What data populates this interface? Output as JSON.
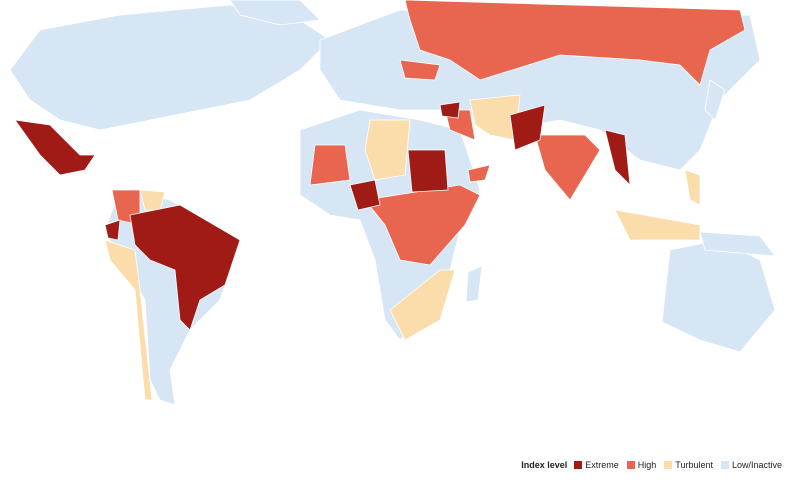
{
  "legend": {
    "title": "Index level",
    "items": [
      {
        "label": "Extreme",
        "color": "#a11b16"
      },
      {
        "label": "High",
        "color": "#e8664f"
      },
      {
        "label": "Turbulent",
        "color": "#fbdcab"
      },
      {
        "label": "Low/Inactive",
        "color": "#d7e6f4"
      }
    ]
  }
}
